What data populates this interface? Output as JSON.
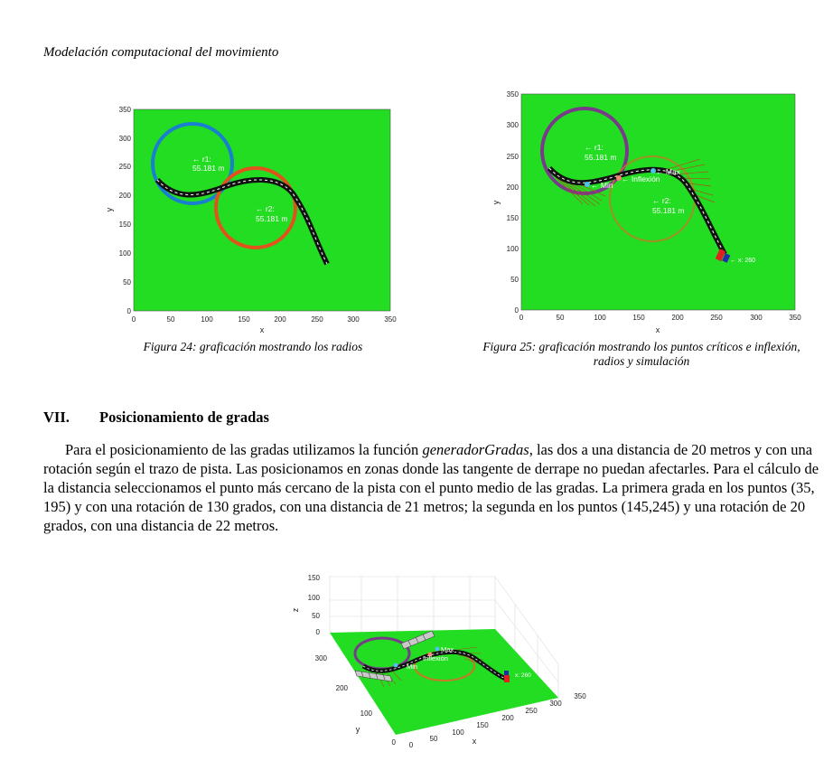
{
  "header": "Modelación computacional del movimiento",
  "fig24": {
    "caption": "Figura 24: graficación mostrando los radios",
    "xlabel": "x",
    "ylabel": "y",
    "xticks": [
      "0",
      "50",
      "100",
      "150",
      "200",
      "250",
      "300",
      "350"
    ],
    "yticks": [
      "0",
      "50",
      "100",
      "150",
      "200",
      "250",
      "300",
      "350"
    ],
    "r1_name": "← r1:",
    "r1_value": "55.181 m",
    "r2_name": "← r2:",
    "r2_value": "55.181 m"
  },
  "fig25": {
    "caption_line1": "Figura 25: graficación mostrando los puntos críticos e inflexión,",
    "caption_line2": "radios y simulación",
    "xlabel": "x",
    "ylabel": "y",
    "xticks": [
      "0",
      "50",
      "100",
      "150",
      "200",
      "250",
      "300",
      "350"
    ],
    "yticks": [
      "0",
      "50",
      "100",
      "150",
      "200",
      "250",
      "300",
      "350"
    ],
    "r1_name": "← r1:",
    "r1_value": "55.181 m",
    "r2_name": "← r2:",
    "r2_value": "55.181 m",
    "min_label": "← Min",
    "inflexion_label": "← Inflexión",
    "max_label": "← Max",
    "car_label": "← x: 260"
  },
  "section": {
    "number": "VII.",
    "title": "Posicionamiento de gradas"
  },
  "paragraph": {
    "part1": "Para el posicionamiento de las gradas utilizamos la función ",
    "function_name": "generadorGradas",
    "part2": ", las dos a una distancia de 20 metros y con una rotación según el trazo de pista. Las posicionamos en zonas donde las tangente de derrape no puedan afectarles. Para el cálculo de la distancia seleccionamos el punto más cercano de la pista con el punto medio de las gradas. La primera grada en los puntos (35, 195) y con una rotación de 130 grados, con una distancia de 21 metros; la segunda en los puntos (145,245) y una rotación de 20 grados, con una distancia de 22 metros."
  },
  "fig3d": {
    "zlabel": "z",
    "ylabel": "y",
    "xlabel": "x",
    "zticks": [
      "150",
      "100",
      "50",
      "0"
    ],
    "yticks": [
      "300",
      "200",
      "100",
      "0"
    ],
    "xticks": [
      "0",
      "50",
      "100",
      "150",
      "200",
      "250",
      "300",
      "350"
    ],
    "min_label": "Min",
    "inflexion_label": "Inflexión",
    "max_label": "Max",
    "car_label": "x: 260"
  },
  "colors": {
    "field": "#22dd22",
    "r1_fig24": "#1a7fd0",
    "r2_fig24": "#e0531c",
    "r1_fig25": "#7a3a8a",
    "r2_fig25": "#c9772a",
    "track": "#111111"
  }
}
